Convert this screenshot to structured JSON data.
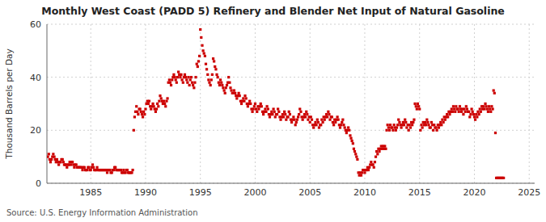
{
  "chart_data": {
    "type": "scatter",
    "title": "Monthly West Coast (PADD 5) Refinery and Blender Net Input of Natural Gasoline",
    "ylabel": "Thousand Barrels per Day",
    "source": "Source: U.S. Energy Information Administration",
    "color": "#cc0000",
    "marker": "square",
    "grid": true,
    "xlim": [
      1981.0,
      2025.5
    ],
    "ylim": [
      0,
      60
    ],
    "xticks": [
      1985,
      1990,
      1995,
      2000,
      2005,
      2010,
      2015,
      2020,
      2025
    ],
    "yticks": [
      0,
      20,
      40,
      60
    ],
    "x": [
      1981.08,
      1981.17,
      1981.25,
      1981.33,
      1981.42,
      1981.5,
      1981.58,
      1981.67,
      1981.75,
      1981.83,
      1981.92,
      1982.0,
      1982.08,
      1982.17,
      1982.25,
      1982.33,
      1982.42,
      1982.5,
      1982.58,
      1982.67,
      1982.75,
      1982.83,
      1982.92,
      1983.0,
      1983.08,
      1983.17,
      1983.25,
      1983.33,
      1983.42,
      1983.5,
      1983.58,
      1983.67,
      1983.75,
      1983.83,
      1983.92,
      1984.0,
      1984.08,
      1984.17,
      1984.25,
      1984.33,
      1984.42,
      1984.5,
      1984.58,
      1984.67,
      1984.75,
      1984.83,
      1984.92,
      1985.0,
      1985.08,
      1985.17,
      1985.25,
      1985.33,
      1985.42,
      1985.5,
      1985.58,
      1985.67,
      1985.75,
      1985.83,
      1985.92,
      1986.0,
      1986.08,
      1986.17,
      1986.25,
      1986.33,
      1986.42,
      1986.5,
      1986.58,
      1986.67,
      1986.75,
      1986.83,
      1986.92,
      1987.0,
      1987.08,
      1987.17,
      1987.25,
      1987.33,
      1987.42,
      1987.5,
      1987.58,
      1987.67,
      1987.75,
      1987.83,
      1987.92,
      1988.0,
      1988.08,
      1988.17,
      1988.25,
      1988.33,
      1988.42,
      1988.5,
      1988.58,
      1988.67,
      1988.75,
      1988.83,
      1988.92,
      1989.0,
      1989.08,
      1989.17,
      1989.25,
      1989.33,
      1989.42,
      1989.5,
      1989.58,
      1989.67,
      1989.75,
      1989.83,
      1989.92,
      1990.0,
      1990.08,
      1990.17,
      1990.25,
      1990.33,
      1990.42,
      1990.5,
      1990.58,
      1990.67,
      1990.75,
      1990.83,
      1990.92,
      1991.0,
      1991.08,
      1991.17,
      1991.25,
      1991.33,
      1991.42,
      1991.5,
      1991.58,
      1991.67,
      1991.75,
      1991.83,
      1991.92,
      1992.0,
      1992.08,
      1992.17,
      1992.25,
      1992.33,
      1992.42,
      1992.5,
      1992.58,
      1992.67,
      1992.75,
      1992.83,
      1992.92,
      1993.0,
      1993.08,
      1993.17,
      1993.25,
      1993.33,
      1993.42,
      1993.5,
      1993.58,
      1993.67,
      1993.75,
      1993.83,
      1993.92,
      1994.0,
      1994.08,
      1994.17,
      1994.25,
      1994.33,
      1994.42,
      1994.5,
      1994.58,
      1994.67,
      1994.75,
      1994.83,
      1994.92,
      1995.0,
      1995.08,
      1995.17,
      1995.25,
      1995.33,
      1995.42,
      1995.5,
      1995.58,
      1995.67,
      1995.75,
      1995.83,
      1995.92,
      1996.0,
      1996.08,
      1996.17,
      1996.25,
      1996.33,
      1996.42,
      1996.5,
      1996.58,
      1996.67,
      1996.75,
      1996.83,
      1996.92,
      1997.0,
      1997.08,
      1997.17,
      1997.25,
      1997.33,
      1997.42,
      1997.5,
      1997.58,
      1997.67,
      1997.75,
      1997.83,
      1997.92,
      1998.0,
      1998.08,
      1998.17,
      1998.25,
      1998.33,
      1998.42,
      1998.5,
      1998.58,
      1998.67,
      1998.75,
      1998.83,
      1998.92,
      1999.0,
      1999.08,
      1999.17,
      1999.25,
      1999.33,
      1999.42,
      1999.5,
      1999.58,
      1999.67,
      1999.75,
      1999.83,
      1999.92,
      2000.0,
      2000.08,
      2000.17,
      2000.25,
      2000.33,
      2000.42,
      2000.5,
      2000.58,
      2000.67,
      2000.75,
      2000.83,
      2000.92,
      2001.0,
      2001.08,
      2001.17,
      2001.25,
      2001.33,
      2001.42,
      2001.5,
      2001.58,
      2001.67,
      2001.75,
      2001.83,
      2001.92,
      2002.0,
      2002.08,
      2002.17,
      2002.25,
      2002.33,
      2002.42,
      2002.5,
      2002.58,
      2002.67,
      2002.75,
      2002.83,
      2002.92,
      2003.0,
      2003.08,
      2003.17,
      2003.25,
      2003.33,
      2003.42,
      2003.5,
      2003.58,
      2003.67,
      2003.75,
      2003.83,
      2003.92,
      2004.0,
      2004.08,
      2004.17,
      2004.25,
      2004.33,
      2004.42,
      2004.5,
      2004.58,
      2004.67,
      2004.75,
      2004.83,
      2004.92,
      2005.0,
      2005.08,
      2005.17,
      2005.25,
      2005.33,
      2005.42,
      2005.5,
      2005.58,
      2005.67,
      2005.75,
      2005.83,
      2005.92,
      2006.0,
      2006.08,
      2006.17,
      2006.25,
      2006.33,
      2006.42,
      2006.5,
      2006.58,
      2006.67,
      2006.75,
      2006.83,
      2006.92,
      2007.0,
      2007.08,
      2007.17,
      2007.25,
      2007.33,
      2007.42,
      2007.5,
      2007.58,
      2007.67,
      2007.75,
      2007.83,
      2007.92,
      2008.0,
      2008.08,
      2008.17,
      2008.25,
      2008.33,
      2008.42,
      2008.5,
      2008.58,
      2008.67,
      2008.75,
      2008.83,
      2008.92,
      2009.0,
      2009.08,
      2009.17,
      2009.25,
      2009.33,
      2009.42,
      2009.5,
      2009.58,
      2009.67,
      2009.75,
      2009.83,
      2009.92,
      2010.0,
      2010.08,
      2010.17,
      2010.25,
      2010.33,
      2010.42,
      2010.5,
      2010.58,
      2010.67,
      2010.75,
      2010.83,
      2010.92,
      2011.0,
      2011.08,
      2011.17,
      2011.25,
      2011.33,
      2011.42,
      2011.5,
      2011.58,
      2011.67,
      2011.75,
      2011.83,
      2011.92,
      2012.0,
      2012.08,
      2012.17,
      2012.25,
      2012.33,
      2012.42,
      2012.5,
      2012.58,
      2012.67,
      2012.75,
      2012.83,
      2012.92,
      2013.0,
      2013.08,
      2013.17,
      2013.25,
      2013.33,
      2013.42,
      2013.5,
      2013.58,
      2013.67,
      2013.75,
      2013.83,
      2013.92,
      2014.0,
      2014.08,
      2014.17,
      2014.25,
      2014.33,
      2014.42,
      2014.5,
      2014.58,
      2014.67,
      2014.75,
      2014.83,
      2014.92,
      2015.0,
      2015.08,
      2015.17,
      2015.25,
      2015.33,
      2015.42,
      2015.5,
      2015.58,
      2015.67,
      2015.75,
      2015.83,
      2015.92,
      2016.0,
      2016.08,
      2016.17,
      2016.25,
      2016.33,
      2016.42,
      2016.5,
      2016.58,
      2016.67,
      2016.75,
      2016.83,
      2016.92,
      2017.0,
      2017.08,
      2017.17,
      2017.25,
      2017.33,
      2017.42,
      2017.5,
      2017.58,
      2017.67,
      2017.75,
      2017.83,
      2017.92,
      2018.0,
      2018.08,
      2018.17,
      2018.25,
      2018.33,
      2018.42,
      2018.5,
      2018.58,
      2018.67,
      2018.75,
      2018.83,
      2018.92,
      2019.0,
      2019.08,
      2019.17,
      2019.25,
      2019.33,
      2019.42,
      2019.5,
      2019.58,
      2019.67,
      2019.75,
      2019.83,
      2019.92,
      2020.0,
      2020.08,
      2020.17,
      2020.25,
      2020.33,
      2020.42,
      2020.5,
      2020.58,
      2020.67,
      2020.75,
      2020.83,
      2020.92,
      2021.0,
      2021.08,
      2021.17,
      2021.25,
      2021.33,
      2021.42,
      2021.5,
      2021.58,
      2021.67,
      2021.75,
      2021.83,
      2021.92,
      2022.0,
      2022.08,
      2022.17,
      2022.25,
      2022.33,
      2022.42,
      2022.5,
      2022.58,
      2022.67
    ],
    "values": [
      10,
      11,
      9,
      8,
      9,
      10,
      11,
      10,
      9,
      8,
      9,
      8,
      7,
      8,
      8,
      9,
      9,
      8,
      7,
      7,
      7,
      6,
      7,
      7,
      8,
      7,
      8,
      8,
      7,
      6,
      7,
      7,
      6,
      6,
      6,
      6,
      6,
      6,
      5,
      6,
      6,
      5,
      5,
      5,
      6,
      6,
      5,
      5,
      6,
      7,
      6,
      5,
      5,
      5,
      6,
      5,
      5,
      5,
      5,
      5,
      5,
      5,
      5,
      5,
      5,
      4,
      5,
      5,
      5,
      4,
      4,
      5,
      5,
      6,
      6,
      5,
      5,
      5,
      5,
      5,
      5,
      4,
      4,
      5,
      4,
      4,
      5,
      5,
      4,
      4,
      4,
      4,
      4,
      5,
      20,
      25,
      27,
      29,
      27,
      26,
      28,
      28,
      27,
      26,
      25,
      27,
      26,
      28,
      30,
      31,
      30,
      31,
      29,
      28,
      29,
      30,
      29,
      28,
      27,
      28,
      30,
      29,
      31,
      33,
      32,
      31,
      30,
      31,
      30,
      29,
      31,
      32,
      38,
      39,
      38,
      37,
      39,
      40,
      41,
      40,
      39,
      38,
      40,
      42,
      41,
      40,
      41,
      39,
      38,
      40,
      41,
      40,
      39,
      38,
      40,
      37,
      39,
      40,
      38,
      37,
      36,
      38,
      40,
      45,
      44,
      46,
      48,
      58,
      55,
      52,
      50,
      49,
      48,
      45,
      43,
      41,
      39,
      38,
      37,
      39,
      41,
      47,
      46,
      44,
      43,
      41,
      40,
      38,
      37,
      39,
      38,
      37,
      36,
      35,
      34,
      36,
      37,
      38,
      40,
      38,
      36,
      35,
      34,
      34,
      35,
      34,
      33,
      32,
      33,
      34,
      33,
      31,
      30,
      31,
      32,
      31,
      33,
      32,
      30,
      29,
      30,
      31,
      30,
      28,
      27,
      28,
      29,
      30,
      28,
      27,
      29,
      28,
      29,
      30,
      29,
      27,
      26,
      27,
      28,
      27,
      29,
      28,
      26,
      25,
      26,
      27,
      26,
      28,
      27,
      25,
      26,
      26,
      28,
      27,
      25,
      24,
      25,
      26,
      25,
      27,
      26,
      24,
      25,
      25,
      27,
      26,
      24,
      23,
      24,
      25,
      24,
      22,
      23,
      24,
      25,
      26,
      28,
      27,
      25,
      24,
      25,
      26,
      25,
      27,
      26,
      24,
      25,
      23,
      25,
      24,
      22,
      21,
      22,
      23,
      22,
      24,
      23,
      21,
      22,
      22,
      24,
      23,
      25,
      24,
      25,
      26,
      25,
      27,
      26,
      24,
      25,
      25,
      23,
      22,
      24,
      23,
      24,
      25,
      24,
      22,
      21,
      22,
      23,
      24,
      22,
      21,
      20,
      19,
      20,
      21,
      20,
      18,
      17,
      16,
      15,
      13,
      12,
      11,
      10,
      9,
      4,
      3,
      4,
      3,
      4,
      5,
      5,
      4,
      5,
      5,
      6,
      5,
      6,
      7,
      8,
      7,
      7,
      6,
      8,
      10,
      12,
      11,
      13,
      12,
      13,
      14,
      13,
      14,
      13,
      14,
      13,
      20,
      22,
      21,
      20,
      22,
      21,
      21,
      20,
      22,
      21,
      20,
      21,
      22,
      24,
      23,
      22,
      21,
      22,
      23,
      22,
      24,
      23,
      21,
      22,
      20,
      22,
      21,
      23,
      22,
      23,
      24,
      30,
      29,
      28,
      30,
      29,
      28,
      20,
      22,
      21,
      23,
      22,
      23,
      22,
      24,
      23,
      22,
      21,
      21,
      23,
      22,
      20,
      22,
      21,
      21,
      20,
      22,
      21,
      22,
      23,
      22,
      24,
      23,
      25,
      24,
      25,
      26,
      25,
      27,
      26,
      27,
      28,
      27,
      29,
      28,
      27,
      29,
      28,
      28,
      27,
      29,
      28,
      27,
      28,
      26,
      28,
      27,
      29,
      28,
      27,
      27,
      25,
      26,
      28,
      27,
      26,
      25,
      24,
      26,
      25,
      27,
      26,
      28,
      27,
      29,
      28,
      29,
      28,
      30,
      29,
      28,
      27,
      29,
      28,
      27,
      29,
      28,
      35,
      34,
      19,
      2,
      2,
      2,
      2,
      2,
      2,
      2,
      2,
      2
    ]
  }
}
